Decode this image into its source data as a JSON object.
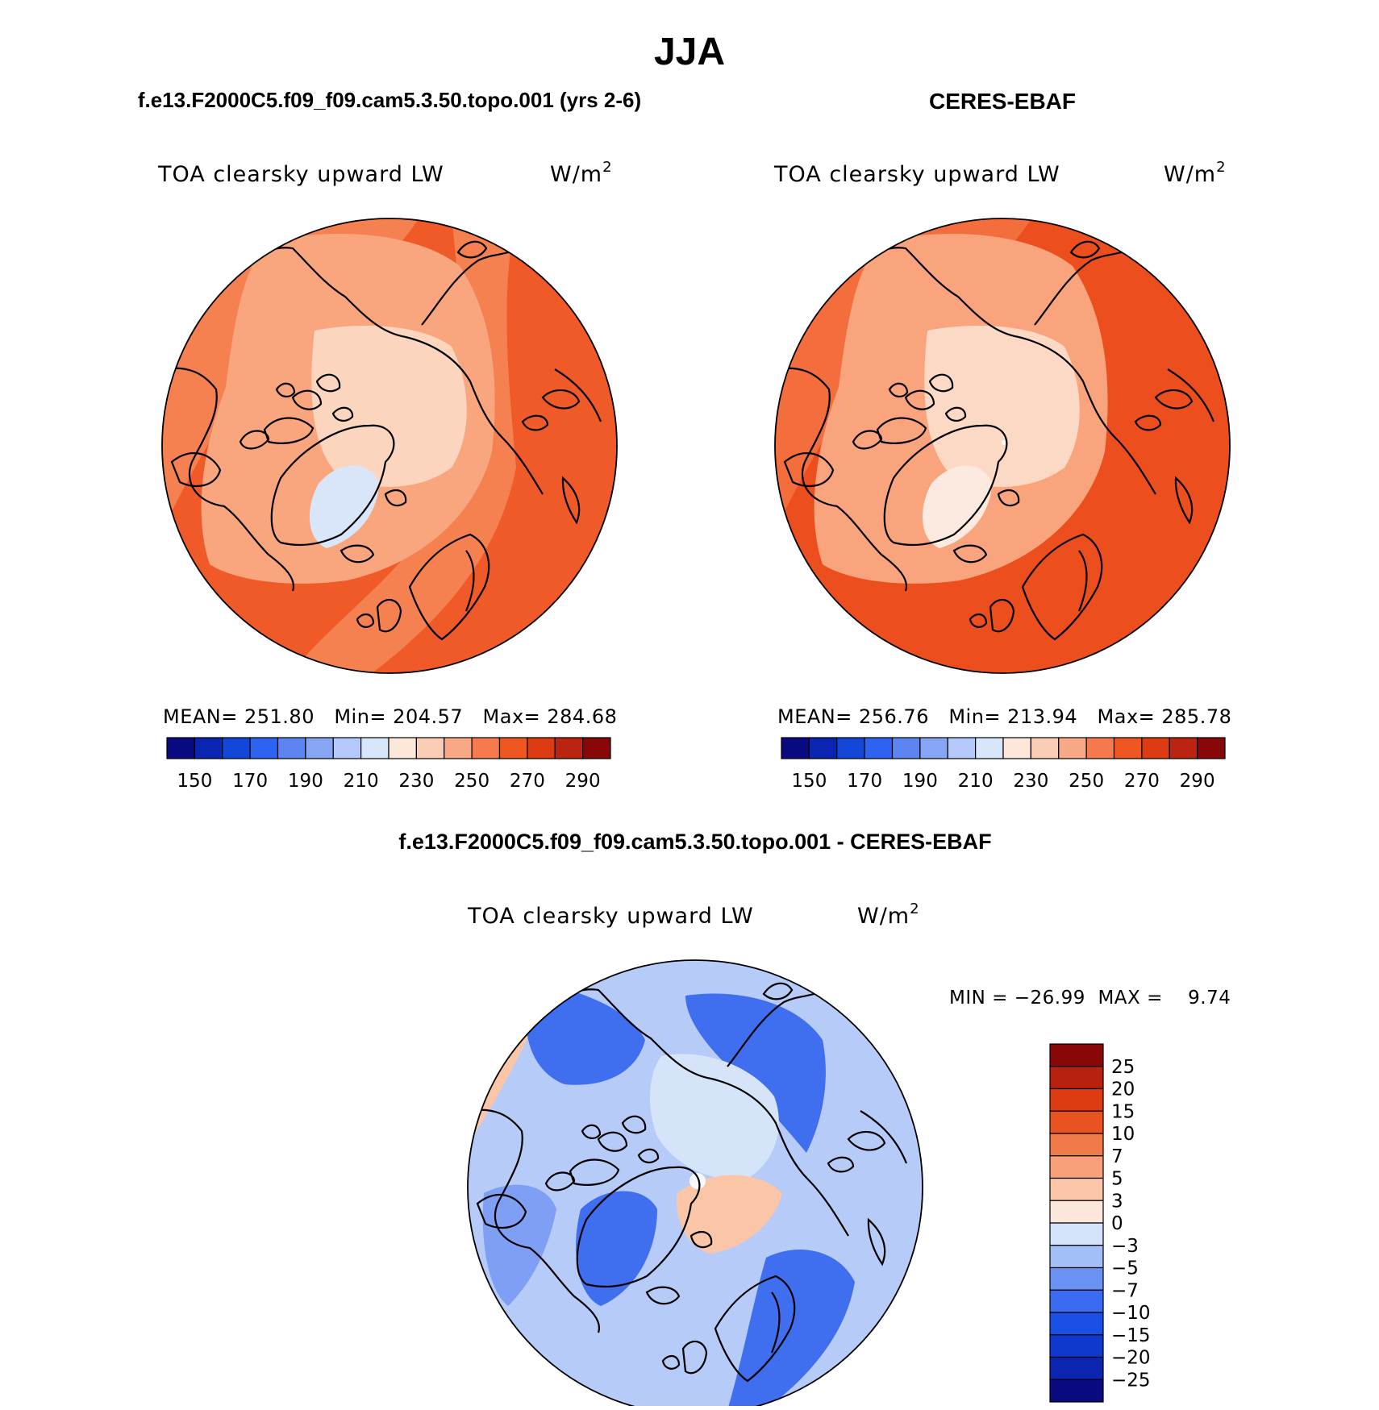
{
  "page": {
    "season_title": "JJA",
    "left_case_title": "f.e13.F2000C5.f09_f09.cam5.3.50.topo.001 (yrs 2-6)",
    "right_case_title": "CERES-EBAF",
    "diff_case_title": "f.e13.F2000C5.f09_f09.cam5.3.50.topo.001 - CERES-EBAF"
  },
  "panels": [
    {
      "id": "model",
      "variable": "TOA clearsky upward LW",
      "units_base": "W/m",
      "units_exp": "2",
      "stats": "MEAN= 251.80   Min= 204.57   Max= 284.68",
      "pole_value": null
    },
    {
      "id": "obs",
      "variable": "TOA clearsky upward LW",
      "units_base": "W/m",
      "units_exp": "2",
      "stats": "MEAN= 256.76   Min= 213.94   Max= 285.78",
      "pole_value": null
    },
    {
      "id": "diff",
      "variable": "TOA clearsky upward LW",
      "units_base": "W/m",
      "units_exp": "2",
      "stats": "MIN = −26.99  MAX =    9.74"
    }
  ],
  "abs_colorbar": {
    "colors": [
      "#0a0a80",
      "#0b25b0",
      "#1447d8",
      "#2e63f0",
      "#5c85f2",
      "#86a6f5",
      "#b3c9f9",
      "#d7e6fb",
      "#fde6da",
      "#fbcdb4",
      "#f8a884",
      "#f57b4e",
      "#ee5722",
      "#dd3c12",
      "#bb2410",
      "#880808"
    ],
    "labels": [
      "150",
      "170",
      "190",
      "210",
      "230",
      "250",
      "270",
      "290"
    ]
  },
  "diff_colorbar": {
    "colors": [
      "#0a0a80",
      "#0b25b0",
      "#0f38cc",
      "#1a4fe6",
      "#3a6bf0",
      "#6a92f3",
      "#a3bff7",
      "#d3e3fa",
      "#fde6da",
      "#fbc6a8",
      "#f7a079",
      "#f07a4a",
      "#e95221",
      "#dd3c12",
      "#b72110",
      "#880808"
    ],
    "labels": [
      "25",
      "20",
      "15",
      "10",
      "7",
      "5",
      "3",
      "0",
      "−3",
      "−5",
      "−7",
      "−10",
      "−15",
      "−20",
      "−25"
    ]
  },
  "map_colors": {
    "model_ocean": "#f05a28",
    "model_mid": "#f68150",
    "model_land": "#f9a67e",
    "model_cap": "#fcd5be",
    "model_green": "#d9e6fa",
    "obs_ocean": "#ec4e1e",
    "obs_mid": "#f36e3c",
    "obs_land": "#f9a47c",
    "obs_cap": "#fcd9c5",
    "obs_green": "#fce9df",
    "diff_base": "#b6cbf8",
    "diff_neg_strong": "#3f6fef",
    "diff_neg_mid": "#7f9ff4",
    "diff_light": "#d6e4fa",
    "diff_pos": "#fbc6a8"
  }
}
